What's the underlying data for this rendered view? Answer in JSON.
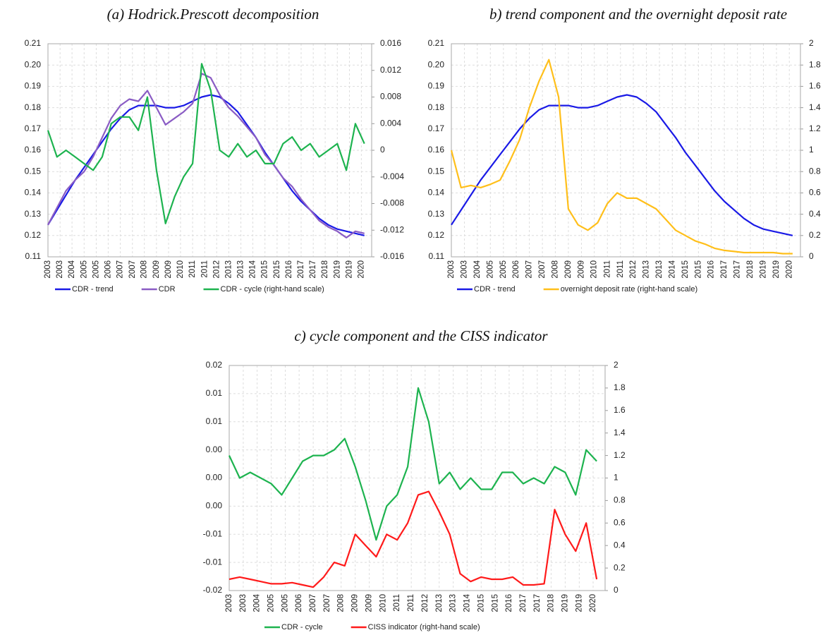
{
  "chart_data": [
    {
      "type": "line",
      "title": "(a)   Hodrick.Prescott decomposition",
      "grid": true,
      "legend": "bottom",
      "x": [
        2003,
        2003.5,
        2004,
        2004.5,
        2005,
        2005.5,
        2006,
        2006.5,
        2007,
        2007.5,
        2008,
        2008.5,
        2009,
        2009.5,
        2010,
        2010.5,
        2011,
        2011.5,
        2012,
        2012.5,
        2013,
        2013.5,
        2014,
        2014.5,
        2015,
        2015.5,
        2016,
        2016.5,
        2017,
        2017.5,
        2018,
        2018.5,
        2019,
        2019.5,
        2020,
        2020.5
      ],
      "xlim": [
        2003,
        2020.9
      ],
      "xticks": [
        {
          "value": 2003,
          "label": "2003"
        },
        {
          "value": 2003.67,
          "label": "2003"
        },
        {
          "value": 2004.33,
          "label": "2004"
        },
        {
          "value": 2005,
          "label": "2005"
        },
        {
          "value": 2005.67,
          "label": "2005"
        },
        {
          "value": 2006.33,
          "label": "2006"
        },
        {
          "value": 2007,
          "label": "2007"
        },
        {
          "value": 2007.67,
          "label": "2007"
        },
        {
          "value": 2008.33,
          "label": "2008"
        },
        {
          "value": 2009,
          "label": "2009"
        },
        {
          "value": 2009.67,
          "label": "2009"
        },
        {
          "value": 2010.33,
          "label": "2010"
        },
        {
          "value": 2011,
          "label": "2011"
        },
        {
          "value": 2011.67,
          "label": "2011"
        },
        {
          "value": 2012.33,
          "label": "2012"
        },
        {
          "value": 2013,
          "label": "2013"
        },
        {
          "value": 2013.67,
          "label": "2013"
        },
        {
          "value": 2014.33,
          "label": "2014"
        },
        {
          "value": 2015,
          "label": "2015"
        },
        {
          "value": 2015.67,
          "label": "2015"
        },
        {
          "value": 2016.33,
          "label": "2016"
        },
        {
          "value": 2017,
          "label": "2017"
        },
        {
          "value": 2017.67,
          "label": "2017"
        },
        {
          "value": 2018.33,
          "label": "2018"
        },
        {
          "value": 2019,
          "label": "2019"
        },
        {
          "value": 2019.67,
          "label": "2019"
        },
        {
          "value": 2020.33,
          "label": "2020"
        }
      ],
      "ylim": [
        0.11,
        0.21
      ],
      "yticks": [
        0.11,
        0.12,
        0.13,
        0.14,
        0.15,
        0.16,
        0.17,
        0.18,
        0.19,
        {
          "value": 0.2,
          "label": "0.20"
        },
        0.21
      ],
      "y2lim": [
        -0.016,
        0.016
      ],
      "y2ticks": [
        -0.016,
        -0.012,
        -0.008,
        -0.004,
        0,
        0.004,
        0.008,
        0.012,
        0.016
      ],
      "series": [
        {
          "name": "CDR - trend",
          "color": "#1a1ae6",
          "values": [
            0.125,
            0.132,
            0.139,
            0.146,
            0.152,
            0.158,
            0.164,
            0.17,
            0.175,
            0.179,
            0.181,
            0.181,
            0.181,
            0.18,
            0.18,
            0.181,
            0.183,
            0.185,
            0.186,
            0.185,
            0.182,
            0.178,
            0.172,
            0.166,
            0.159,
            0.153,
            0.147,
            0.141,
            0.136,
            0.132,
            0.128,
            0.125,
            0.123,
            0.122,
            0.121,
            0.12
          ]
        },
        {
          "name": "CDR",
          "color": "#8a5cc4",
          "values": [
            0.125,
            0.133,
            0.141,
            0.146,
            0.15,
            0.157,
            0.166,
            0.175,
            0.181,
            0.184,
            0.183,
            0.188,
            0.18,
            0.172,
            0.175,
            0.178,
            0.182,
            0.196,
            0.194,
            0.186,
            0.18,
            0.176,
            0.171,
            0.166,
            0.158,
            0.153,
            0.147,
            0.143,
            0.137,
            0.132,
            0.127,
            0.124,
            0.122,
            0.119,
            0.122,
            0.121
          ]
        },
        {
          "name": "CDR - cycle  (right-hand scale)",
          "color": "#1db34f",
          "axis": "y2",
          "values": [
            0.003,
            -0.001,
            0,
            -0.001,
            -0.002,
            -0.003,
            -0.001,
            0.004,
            0.005,
            0.005,
            0.003,
            0.008,
            -0.003,
            -0.011,
            -0.007,
            -0.004,
            -0.002,
            0.013,
            0.009,
            0,
            -0.001,
            0.001,
            -0.001,
            0,
            -0.002,
            -0.002,
            0.001,
            0.002,
            0,
            0.001,
            -0.001,
            0,
            0.001,
            -0.003,
            0.004,
            0.001
          ]
        }
      ]
    },
    {
      "type": "line",
      "title": "b)    trend component and the overnight deposit rate",
      "grid": true,
      "legend": "bottom",
      "x": [
        2003,
        2003.5,
        2004,
        2004.5,
        2005,
        2005.5,
        2006,
        2006.5,
        2007,
        2007.5,
        2008,
        2008.5,
        2009,
        2009.5,
        2010,
        2010.5,
        2011,
        2011.5,
        2012,
        2012.5,
        2013,
        2013.5,
        2014,
        2014.5,
        2015,
        2015.5,
        2016,
        2016.5,
        2017,
        2017.5,
        2018,
        2018.5,
        2019,
        2019.5,
        2020,
        2020.5
      ],
      "xlim": [
        2003,
        2020.9
      ],
      "xticks": [
        {
          "value": 2003,
          "label": "2003"
        },
        {
          "value": 2003.67,
          "label": "2003"
        },
        {
          "value": 2004.33,
          "label": "2004"
        },
        {
          "value": 2005,
          "label": "2005"
        },
        {
          "value": 2005.67,
          "label": "2005"
        },
        {
          "value": 2006.33,
          "label": "2006"
        },
        {
          "value": 2007,
          "label": "2007"
        },
        {
          "value": 2007.67,
          "label": "2007"
        },
        {
          "value": 2008.33,
          "label": "2008"
        },
        {
          "value": 2009,
          "label": "2009"
        },
        {
          "value": 2009.67,
          "label": "2009"
        },
        {
          "value": 2010.33,
          "label": "2010"
        },
        {
          "value": 2011,
          "label": "2011"
        },
        {
          "value": 2011.67,
          "label": "2011"
        },
        {
          "value": 2012.33,
          "label": "2012"
        },
        {
          "value": 2013,
          "label": "2013"
        },
        {
          "value": 2013.67,
          "label": "2013"
        },
        {
          "value": 2014.33,
          "label": "2014"
        },
        {
          "value": 2015,
          "label": "2015"
        },
        {
          "value": 2015.67,
          "label": "2015"
        },
        {
          "value": 2016.33,
          "label": "2016"
        },
        {
          "value": 2017,
          "label": "2017"
        },
        {
          "value": 2017.67,
          "label": "2017"
        },
        {
          "value": 2018.33,
          "label": "2018"
        },
        {
          "value": 2019,
          "label": "2019"
        },
        {
          "value": 2019.67,
          "label": "2019"
        },
        {
          "value": 2020.33,
          "label": "2020"
        }
      ],
      "ylim": [
        0.11,
        0.21
      ],
      "yticks": [
        0.11,
        0.12,
        0.13,
        0.14,
        0.15,
        0.16,
        0.17,
        0.18,
        0.19,
        {
          "value": 0.2,
          "label": "0.20"
        },
        0.21
      ],
      "y2lim": [
        0,
        2
      ],
      "y2ticks": [
        0,
        0.2,
        0.4,
        0.6,
        0.8,
        1,
        1.2,
        1.4,
        1.6,
        1.8,
        2
      ],
      "series": [
        {
          "name": "CDR - trend",
          "color": "#1a1ae6",
          "values": [
            0.125,
            0.132,
            0.139,
            0.146,
            0.152,
            0.158,
            0.164,
            0.17,
            0.175,
            0.179,
            0.181,
            0.181,
            0.181,
            0.18,
            0.18,
            0.181,
            0.183,
            0.185,
            0.186,
            0.185,
            0.182,
            0.178,
            0.172,
            0.166,
            0.159,
            0.153,
            0.147,
            0.141,
            0.136,
            0.132,
            0.128,
            0.125,
            0.123,
            0.122,
            0.121,
            0.12
          ]
        },
        {
          "name": "overnight deposit rate (right-hand scale)",
          "color": "#ffbf1a",
          "axis": "y2",
          "values": [
            1.0,
            0.65,
            0.67,
            0.65,
            0.68,
            0.72,
            0.9,
            1.1,
            1.4,
            1.65,
            1.85,
            1.5,
            0.45,
            0.3,
            0.25,
            0.32,
            0.5,
            0.6,
            0.55,
            0.55,
            0.5,
            0.45,
            0.35,
            0.25,
            0.2,
            0.15,
            0.12,
            0.08,
            0.06,
            0.05,
            0.04,
            0.04,
            0.04,
            0.04,
            0.03,
            0.03
          ]
        }
      ]
    },
    {
      "type": "line",
      "title": "c)  cycle component and the CISS indicator",
      "grid": true,
      "legend": "bottom",
      "x": [
        2003,
        2003.5,
        2004,
        2004.5,
        2005,
        2005.5,
        2006,
        2006.5,
        2007,
        2007.5,
        2008,
        2008.5,
        2009,
        2009.5,
        2010,
        2010.5,
        2011,
        2011.5,
        2012,
        2012.5,
        2013,
        2013.5,
        2014,
        2014.5,
        2015,
        2015.5,
        2016,
        2016.5,
        2017,
        2017.5,
        2018,
        2018.5,
        2019,
        2019.5,
        2020,
        2020.5
      ],
      "xlim": [
        2003,
        2020.9
      ],
      "xticks": [
        {
          "value": 2003,
          "label": "2003"
        },
        {
          "value": 2003.67,
          "label": "2003"
        },
        {
          "value": 2004.33,
          "label": "2004"
        },
        {
          "value": 2005,
          "label": "2005"
        },
        {
          "value": 2005.67,
          "label": "2005"
        },
        {
          "value": 2006.33,
          "label": "2006"
        },
        {
          "value": 2007,
          "label": "2007"
        },
        {
          "value": 2007.67,
          "label": "2007"
        },
        {
          "value": 2008.33,
          "label": "2008"
        },
        {
          "value": 2009,
          "label": "2009"
        },
        {
          "value": 2009.67,
          "label": "2009"
        },
        {
          "value": 2010.33,
          "label": "2010"
        },
        {
          "value": 2011,
          "label": "2011"
        },
        {
          "value": 2011.67,
          "label": "2011"
        },
        {
          "value": 2012.33,
          "label": "2012"
        },
        {
          "value": 2013,
          "label": "2013"
        },
        {
          "value": 2013.67,
          "label": "2013"
        },
        {
          "value": 2014.33,
          "label": "2014"
        },
        {
          "value": 2015,
          "label": "2015"
        },
        {
          "value": 2015.67,
          "label": "2015"
        },
        {
          "value": 2016.33,
          "label": "2016"
        },
        {
          "value": 2017,
          "label": "2017"
        },
        {
          "value": 2017.67,
          "label": "2017"
        },
        {
          "value": 2018.33,
          "label": "2018"
        },
        {
          "value": 2019,
          "label": "2019"
        },
        {
          "value": 2019.67,
          "label": "2019"
        },
        {
          "value": 2020.33,
          "label": "2020"
        }
      ],
      "ylim": [
        -0.02,
        0.02
      ],
      "yticks": [
        -0.02,
        {
          "value": -0.015,
          "label": "-0.01"
        },
        {
          "value": -0.01,
          "label": "-0.01"
        },
        {
          "value": -0.005,
          "label": "0.00"
        },
        {
          "value": 0,
          "label": "0.00"
        },
        {
          "value": 0.005,
          "label": "0.00"
        },
        {
          "value": 0.01,
          "label": "0.01"
        },
        {
          "value": 0.015,
          "label": "0.01"
        },
        0.02
      ],
      "y2lim": [
        0,
        2
      ],
      "y2ticks": [
        0,
        0.2,
        0.4,
        0.6,
        0.8,
        1,
        1.2,
        1.4,
        1.6,
        1.8,
        2
      ],
      "series": [
        {
          "name": "CDR - cycle",
          "color": "#1db34f",
          "values": [
            0.004,
            0,
            0.001,
            0,
            -0.001,
            -0.003,
            0,
            0.003,
            0.004,
            0.004,
            0.005,
            0.007,
            0.002,
            -0.004,
            -0.011,
            -0.005,
            -0.003,
            0.002,
            0.016,
            0.01,
            -0.001,
            0.001,
            -0.002,
            0,
            -0.002,
            -0.002,
            0.001,
            0.001,
            -0.001,
            0,
            -0.001,
            0.002,
            0.001,
            -0.003,
            0.005,
            0.003
          ]
        },
        {
          "name": "CISS indicator (right-hand scale)",
          "color": "#ff1a1a",
          "axis": "y2",
          "values": [
            0.1,
            0.12,
            0.1,
            0.08,
            0.06,
            0.06,
            0.07,
            0.05,
            0.03,
            0.12,
            0.25,
            0.22,
            0.5,
            0.4,
            0.3,
            0.5,
            0.45,
            0.6,
            0.85,
            0.88,
            0.7,
            0.5,
            0.15,
            0.08,
            0.12,
            0.1,
            0.1,
            0.12,
            0.05,
            0.05,
            0.06,
            0.72,
            0.5,
            0.35,
            0.6,
            0.1
          ]
        }
      ]
    }
  ]
}
